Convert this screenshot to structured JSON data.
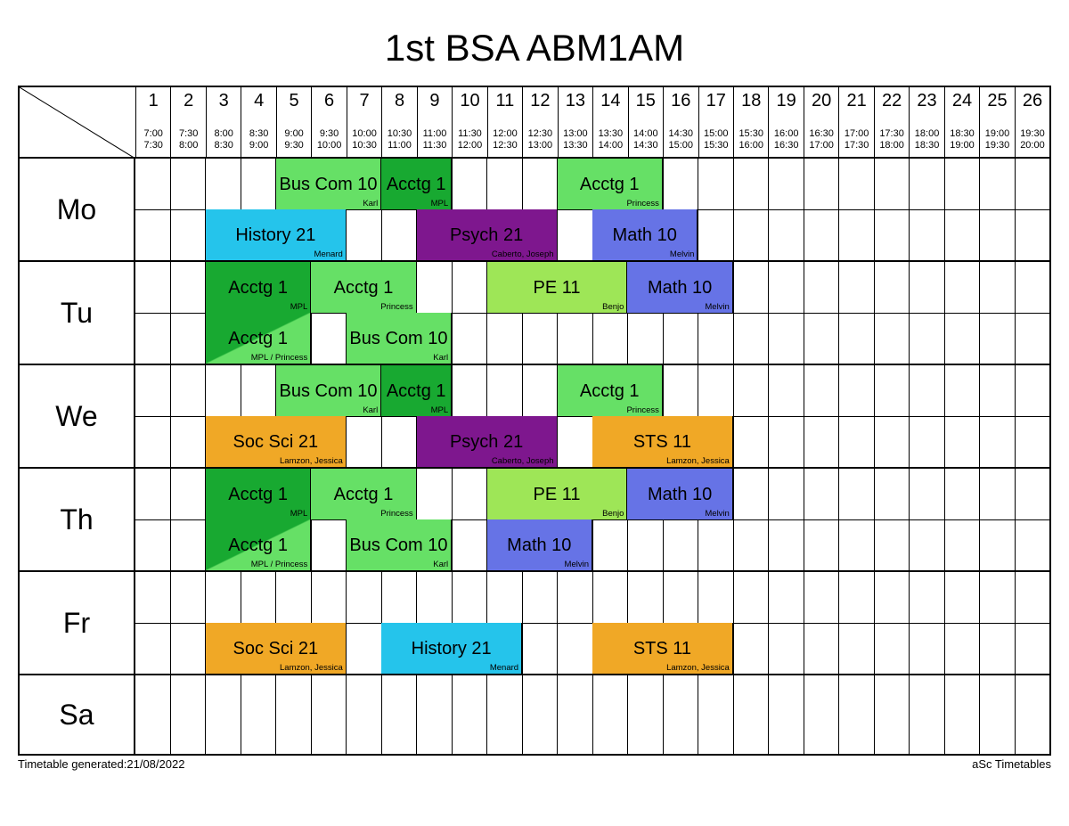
{
  "title": "1st BSA ABM1AM",
  "footer_left": "Timetable generated:21/08/2022",
  "footer_right": "aSc Timetables",
  "periods": [
    {
      "n": "1",
      "s": "7:00",
      "e": "7:30"
    },
    {
      "n": "2",
      "s": "7:30",
      "e": "8:00"
    },
    {
      "n": "3",
      "s": "8:00",
      "e": "8:30"
    },
    {
      "n": "4",
      "s": "8:30",
      "e": "9:00"
    },
    {
      "n": "5",
      "s": "9:00",
      "e": "9:30"
    },
    {
      "n": "6",
      "s": "9:30",
      "e": "10:00"
    },
    {
      "n": "7",
      "s": "10:00",
      "e": "10:30"
    },
    {
      "n": "8",
      "s": "10:30",
      "e": "11:00"
    },
    {
      "n": "9",
      "s": "11:00",
      "e": "11:30"
    },
    {
      "n": "10",
      "s": "11:30",
      "e": "12:00"
    },
    {
      "n": "11",
      "s": "12:00",
      "e": "12:30"
    },
    {
      "n": "12",
      "s": "12:30",
      "e": "13:00"
    },
    {
      "n": "13",
      "s": "13:00",
      "e": "13:30"
    },
    {
      "n": "14",
      "s": "13:30",
      "e": "14:00"
    },
    {
      "n": "15",
      "s": "14:00",
      "e": "14:30"
    },
    {
      "n": "16",
      "s": "14:30",
      "e": "15:00"
    },
    {
      "n": "17",
      "s": "15:00",
      "e": "15:30"
    },
    {
      "n": "18",
      "s": "15:30",
      "e": "16:00"
    },
    {
      "n": "19",
      "s": "16:00",
      "e": "16:30"
    },
    {
      "n": "20",
      "s": "16:30",
      "e": "17:00"
    },
    {
      "n": "21",
      "s": "17:00",
      "e": "17:30"
    },
    {
      "n": "22",
      "s": "17:30",
      "e": "18:00"
    },
    {
      "n": "23",
      "s": "18:00",
      "e": "18:30"
    },
    {
      "n": "24",
      "s": "18:30",
      "e": "19:00"
    },
    {
      "n": "25",
      "s": "19:00",
      "e": "19:30"
    },
    {
      "n": "26",
      "s": "19:30",
      "e": "20:00"
    }
  ],
  "colors": {
    "green_light": "#66e066",
    "green_dark": "#18a931",
    "cyan": "#25c4eb",
    "purple": "#7e178e",
    "blue": "#6673e6",
    "lime": "#9ee657",
    "orange": "#f0a826"
  },
  "num_periods": 26,
  "days": [
    {
      "label": "Mo",
      "rows": 2,
      "entries": [
        {
          "row": 0,
          "start": 5,
          "span": 3,
          "subject": "Bus Com 10",
          "teacher": "Karl",
          "color": "green_light"
        },
        {
          "row": 0,
          "start": 8,
          "span": 2,
          "subject": "Acctg 1",
          "teacher": "MPL",
          "color": "green_dark"
        },
        {
          "row": 0,
          "start": 13,
          "span": 3,
          "subject": "Acctg 1",
          "teacher": "Princess",
          "color": "green_light"
        },
        {
          "row": 1,
          "start": 3,
          "span": 4,
          "subject": "History 21",
          "teacher": "Menard",
          "color": "cyan"
        },
        {
          "row": 1,
          "start": 9,
          "span": 4,
          "subject": "Psych 21",
          "teacher": "Caberto, Joseph",
          "color": "purple"
        },
        {
          "row": 1,
          "start": 14,
          "span": 3,
          "subject": "Math 10",
          "teacher": "Melvin",
          "color": "blue"
        }
      ]
    },
    {
      "label": "Tu",
      "rows": 2,
      "entries": [
        {
          "row": 0,
          "start": 3,
          "span": 3,
          "subject": "Acctg 1",
          "teacher": "MPL",
          "color": "green_dark"
        },
        {
          "row": 0,
          "start": 6,
          "span": 3,
          "subject": "Acctg 1",
          "teacher": "Princess",
          "color": "green_light"
        },
        {
          "row": 0,
          "start": 11,
          "span": 4,
          "subject": "PE 11",
          "teacher": "Benjo",
          "color": "lime"
        },
        {
          "row": 0,
          "start": 15,
          "span": 3,
          "subject": "Math 10",
          "teacher": "Melvin",
          "color": "blue"
        },
        {
          "row": 1,
          "start": 3,
          "span": 3,
          "subject": "Acctg 1",
          "teacher": "MPL / Princess",
          "split": true,
          "color": "green_light",
          "color2": "green_dark"
        },
        {
          "row": 1,
          "start": 7,
          "span": 3,
          "subject": "Bus Com 10",
          "teacher": "Karl",
          "color": "green_light"
        }
      ]
    },
    {
      "label": "We",
      "rows": 2,
      "entries": [
        {
          "row": 0,
          "start": 5,
          "span": 3,
          "subject": "Bus Com 10",
          "teacher": "Karl",
          "color": "green_light"
        },
        {
          "row": 0,
          "start": 8,
          "span": 2,
          "subject": "Acctg 1",
          "teacher": "MPL",
          "color": "green_dark"
        },
        {
          "row": 0,
          "start": 13,
          "span": 3,
          "subject": "Acctg 1",
          "teacher": "Princess",
          "color": "green_light"
        },
        {
          "row": 1,
          "start": 3,
          "span": 4,
          "subject": "Soc Sci 21",
          "teacher": "Lamzon, Jessica",
          "color": "orange"
        },
        {
          "row": 1,
          "start": 9,
          "span": 4,
          "subject": "Psych 21",
          "teacher": "Caberto, Joseph",
          "color": "purple"
        },
        {
          "row": 1,
          "start": 14,
          "span": 4,
          "subject": "STS 11",
          "teacher": "Lamzon, Jessica",
          "color": "orange"
        }
      ]
    },
    {
      "label": "Th",
      "rows": 2,
      "entries": [
        {
          "row": 0,
          "start": 3,
          "span": 3,
          "subject": "Acctg 1",
          "teacher": "MPL",
          "color": "green_dark"
        },
        {
          "row": 0,
          "start": 6,
          "span": 3,
          "subject": "Acctg 1",
          "teacher": "Princess",
          "color": "green_light"
        },
        {
          "row": 0,
          "start": 11,
          "span": 4,
          "subject": "PE 11",
          "teacher": "Benjo",
          "color": "lime"
        },
        {
          "row": 0,
          "start": 15,
          "span": 3,
          "subject": "Math 10",
          "teacher": "Melvin",
          "color": "blue"
        },
        {
          "row": 1,
          "start": 3,
          "span": 3,
          "subject": "Acctg 1",
          "teacher": "MPL / Princess",
          "split": true,
          "color": "green_light",
          "color2": "green_dark"
        },
        {
          "row": 1,
          "start": 7,
          "span": 3,
          "subject": "Bus Com 10",
          "teacher": "Karl",
          "color": "green_light"
        },
        {
          "row": 1,
          "start": 11,
          "span": 3,
          "subject": "Math 10",
          "teacher": "Melvin",
          "color": "blue"
        }
      ]
    },
    {
      "label": "Fr",
      "rows": 2,
      "entries": [
        {
          "row": 1,
          "start": 3,
          "span": 4,
          "subject": "Soc Sci 21",
          "teacher": "Lamzon, Jessica",
          "color": "orange"
        },
        {
          "row": 1,
          "start": 8,
          "span": 4,
          "subject": "History 21",
          "teacher": "Menard",
          "color": "cyan"
        },
        {
          "row": 1,
          "start": 14,
          "span": 4,
          "subject": "STS 11",
          "teacher": "Lamzon, Jessica",
          "color": "orange"
        }
      ]
    },
    {
      "label": "Sa",
      "rows": 1,
      "entries": []
    }
  ]
}
